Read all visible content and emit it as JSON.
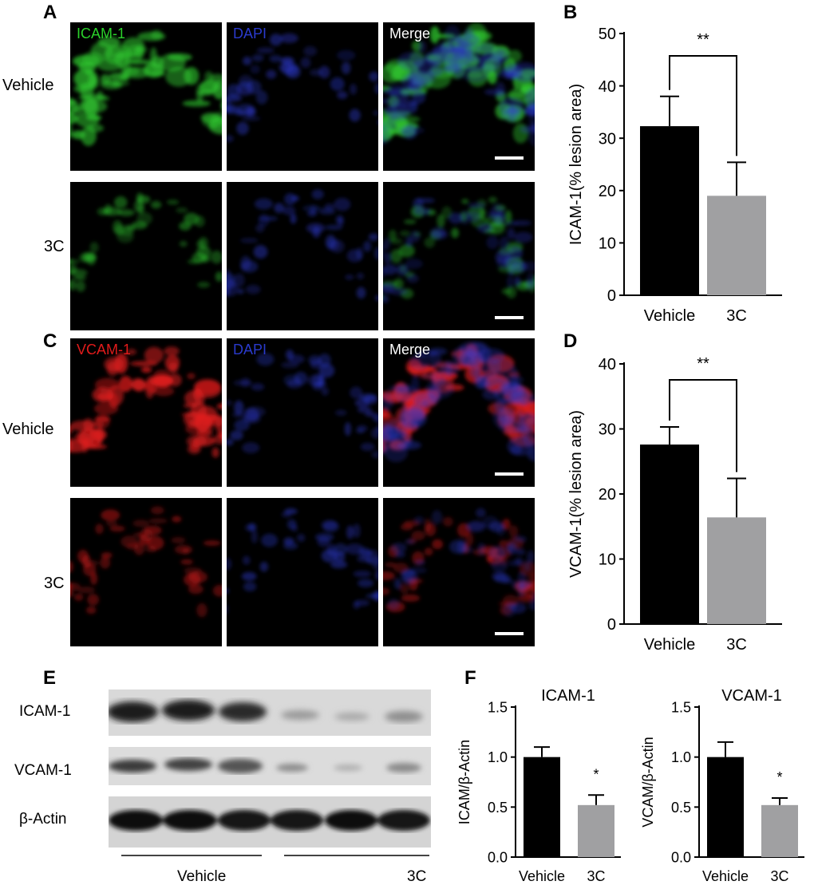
{
  "panels": {
    "A": {
      "label": "A",
      "channels": [
        "ICAM-1",
        "DAPI",
        "Merge"
      ],
      "rows": [
        "Vehicle",
        "3C"
      ],
      "channel_colors": [
        "#2bd12b",
        "#2a3acc",
        "#ffffff"
      ]
    },
    "C": {
      "label": "C",
      "channels": [
        "VCAM-1",
        "DAPI",
        "Merge"
      ],
      "rows": [
        "Vehicle",
        "3C"
      ],
      "channel_colors": [
        "#e21b1b",
        "#2a3acc",
        "#ffffff"
      ]
    },
    "B": {
      "label": "B"
    },
    "D": {
      "label": "D"
    },
    "E": {
      "label": "E",
      "bands": [
        "ICAM-1",
        "VCAM-1",
        "β-Actin"
      ],
      "groups": [
        "Vehicle",
        "3C"
      ]
    },
    "F": {
      "label": "F"
    }
  },
  "chart_data": [
    {
      "id": "B",
      "type": "bar",
      "categories": [
        "Vehicle",
        "3C"
      ],
      "values": [
        32.3,
        19.0
      ],
      "errors": [
        5.7,
        6.4
      ],
      "colors": [
        "#000000",
        "#a0a0a2"
      ],
      "ylabel": "ICAM-1(% lesion area)",
      "ylim": [
        0,
        50
      ],
      "yticks": [
        "0",
        "10",
        "20",
        "30",
        "40",
        "50"
      ],
      "significance": "**",
      "title": ""
    },
    {
      "id": "D",
      "type": "bar",
      "categories": [
        "Vehicle",
        "3C"
      ],
      "values": [
        27.6,
        16.4
      ],
      "errors": [
        2.7,
        6.0
      ],
      "colors": [
        "#000000",
        "#a0a0a2"
      ],
      "ylabel": "VCAM-1(% lesion area)",
      "ylim": [
        0,
        40
      ],
      "yticks": [
        "0",
        "10",
        "20",
        "30",
        "40"
      ],
      "significance": "**",
      "title": ""
    },
    {
      "id": "F1",
      "type": "bar",
      "categories": [
        "Vehicle",
        "3C"
      ],
      "values": [
        1.0,
        0.52
      ],
      "errors": [
        0.1,
        0.1
      ],
      "colors": [
        "#000000",
        "#a0a0a2"
      ],
      "ylabel": "ICAM/β-Actin",
      "ylim": [
        0,
        1.5
      ],
      "yticks": [
        "0.0",
        "0.5",
        "1.0",
        "1.5"
      ],
      "significance": "*",
      "title": "ICAM-1"
    },
    {
      "id": "F2",
      "type": "bar",
      "categories": [
        "Vehicle",
        "3C"
      ],
      "values": [
        1.0,
        0.52
      ],
      "errors": [
        0.15,
        0.07
      ],
      "colors": [
        "#000000",
        "#a0a0a2"
      ],
      "ylabel": "VCAM/β-Actin",
      "ylim": [
        0,
        1.5
      ],
      "yticks": [
        "0.0",
        "0.5",
        "1.0",
        "1.5"
      ],
      "significance": "*",
      "title": "VCAM-1"
    }
  ]
}
